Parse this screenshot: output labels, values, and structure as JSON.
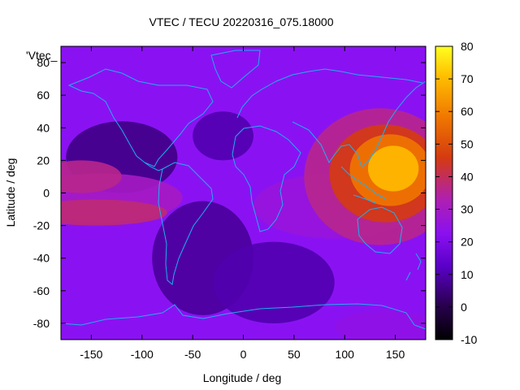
{
  "chart_data": {
    "type": "heatmap",
    "title": "VTEC / TECU 20220316_075.18000",
    "xlabel": "Longitude / deg",
    "ylabel": "Latitude / deg",
    "key_label": "'Vtec_",
    "xlim": [
      -180,
      180
    ],
    "ylim": [
      -90,
      90
    ],
    "x_ticks": [
      -150,
      -100,
      -50,
      0,
      50,
      100,
      150
    ],
    "y_ticks": [
      -80,
      -60,
      -40,
      -20,
      0,
      20,
      40,
      60,
      80
    ],
    "colorbar": {
      "range": [
        -10,
        80
      ],
      "ticks": [
        -10,
        0,
        10,
        20,
        30,
        40,
        50,
        60,
        70,
        80
      ],
      "palette": "black-blue-purple-red-orange-yellow (gnuplot pm3d)"
    },
    "features": [
      {
        "region": "equatorial anomaly, East Asia / Western Pacific",
        "lon_center": 145,
        "lat_center": 12,
        "peak_tecu": 75
      },
      {
        "region": "equatorial band, Eastern Pacific",
        "lon_center": -145,
        "lat_center": -5,
        "peak_tecu": 40
      },
      {
        "region": "Africa / Indian Ocean band",
        "lon_center": 70,
        "lat_center": -5,
        "peak_tecu": 35
      },
      {
        "region": "Antarctic enhancement near 140E",
        "lon_center": 140,
        "lat_center": -80,
        "peak_tecu": 25
      }
    ],
    "background_tecu": 14
  },
  "colors": {
    "coastline": "#1cb0f0",
    "frame": "#000000"
  }
}
